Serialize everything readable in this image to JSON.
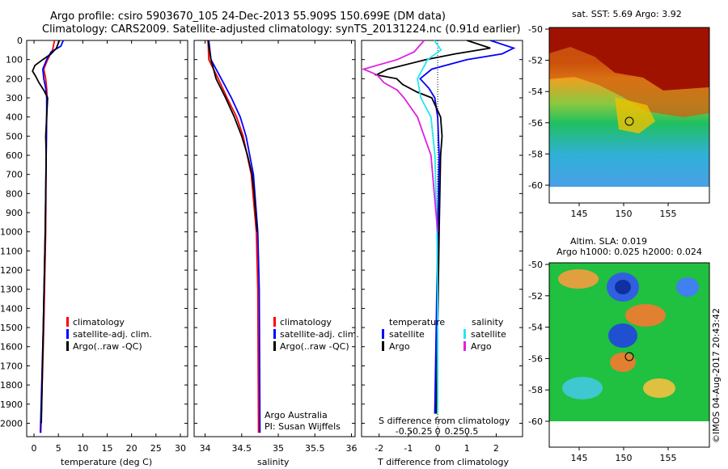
{
  "header": {
    "line1": "Argo profile: csiro 5903670_105 24-Dec-2013 55.909S 150.699E (DM data)",
    "line2": "Climatology: CARS2009. Satellite-adjusted climatology: synTS_20131224.nc (0.91d earlier)"
  },
  "colors": {
    "climatology": "#ff0000",
    "satellite": "#0000ff",
    "argo": "#000000",
    "sal_satellite": "#22e8f0",
    "sal_argo": "#e020e0"
  },
  "depth_ticks": [
    0,
    100,
    200,
    300,
    400,
    500,
    600,
    700,
    800,
    900,
    1000,
    1100,
    1200,
    1300,
    1400,
    1500,
    1600,
    1700,
    1800,
    1900,
    2000
  ],
  "legend": {
    "climatology": "climatology",
    "satellite_adj": "satellite-adj. clim.",
    "argo": "Argo(..raw -QC)"
  },
  "diff_legend": {
    "temperature": "temperature",
    "salinity": "salinity",
    "satellite": "satellite",
    "argo": "Argo"
  },
  "credits": {
    "line1": "Argo Australia",
    "line2": "PI: Susan Wijffels"
  },
  "sst_map": {
    "title": "sat. SST: 5.69  Argo: 3.92",
    "lat_ticks": [
      "-50",
      "-52",
      "-54",
      "-56",
      "-58",
      "-60"
    ],
    "lon_ticks": [
      "145",
      "150",
      "155"
    ]
  },
  "sla_map": {
    "title1": "Altim. SLA: 0.019",
    "title2": "Argo h1000: 0.025 h2000: 0.024",
    "lat_ticks": [
      "-50",
      "-52",
      "-54",
      "-56",
      "-58",
      "-60"
    ],
    "lon_ticks": [
      "145",
      "150",
      "155"
    ]
  },
  "watermark": "©IMOS 04-Aug-2017 20:43:42",
  "chart_data": [
    {
      "type": "line",
      "xlabel": "temperature (deg C)",
      "xticks": [
        0,
        5,
        10,
        15,
        20,
        25,
        30
      ],
      "xlim": [
        -1.5,
        31.5
      ],
      "ylim": [
        2070,
        0
      ],
      "series": [
        {
          "name": "climatology",
          "color": "#ff0000",
          "depth": [
            0,
            50,
            100,
            150,
            200,
            250,
            300,
            400,
            600,
            1000,
            1500,
            2050
          ],
          "values": [
            4.2,
            3.8,
            2.8,
            2.0,
            2.4,
            2.6,
            2.7,
            2.6,
            2.5,
            2.4,
            2.0,
            1.4
          ]
        },
        {
          "name": "satellite-adj. clim.",
          "color": "#0000ff",
          "depth": [
            0,
            30,
            60,
            100,
            150,
            200,
            250,
            300,
            400,
            600,
            1000,
            1500,
            2050
          ],
          "values": [
            6.0,
            5.5,
            3.5,
            2.6,
            1.8,
            2.0,
            2.4,
            2.6,
            2.6,
            2.5,
            2.3,
            1.9,
            1.3
          ]
        },
        {
          "name": "Argo(..raw -QC)",
          "color": "#000000",
          "depth": [
            0,
            40,
            70,
            100,
            130,
            160,
            190,
            220,
            260,
            300,
            400,
            500,
            600,
            1000,
            1500,
            2000
          ],
          "values": [
            5.2,
            4.6,
            3.5,
            1.8,
            0.2,
            -0.3,
            0.4,
            1.0,
            2.0,
            2.8,
            2.6,
            2.4,
            2.5,
            2.3,
            1.9,
            1.5
          ]
        }
      ]
    },
    {
      "type": "line",
      "xlabel": "salinity",
      "xticks": [
        34,
        34.5,
        35,
        35.5,
        36
      ],
      "xlim": [
        33.85,
        36.05
      ],
      "ylim": [
        2070,
        0
      ],
      "series": [
        {
          "name": "climatology",
          "color": "#ff0000",
          "depth": [
            0,
            100,
            200,
            300,
            400,
            500,
            700,
            1000,
            1300,
            2050
          ],
          "values": [
            34.04,
            34.05,
            34.18,
            34.3,
            34.43,
            34.52,
            34.63,
            34.7,
            34.72,
            34.73
          ]
        },
        {
          "name": "satellite-adj. clim.",
          "color": "#0000ff",
          "depth": [
            0,
            100,
            200,
            300,
            400,
            500,
            700,
            1000,
            1300,
            2050
          ],
          "values": [
            34.05,
            34.08,
            34.22,
            34.36,
            34.48,
            34.56,
            34.66,
            34.72,
            34.74,
            34.75
          ]
        },
        {
          "name": "Argo(..raw -QC)",
          "color": "#000000",
          "depth": [
            0,
            100,
            200,
            300,
            400,
            500,
            600,
            700,
            800,
            1000
          ],
          "values": [
            34.04,
            34.08,
            34.15,
            34.28,
            34.4,
            34.5,
            34.58,
            34.64,
            34.67,
            34.71
          ]
        }
      ]
    },
    {
      "type": "line",
      "xlabel": "T difference from climatology",
      "xlabel2": "S difference from climatology",
      "xticks_T": [
        -2,
        -1,
        0,
        1,
        2
      ],
      "xticks_S": [
        -0.5,
        -0.25,
        0,
        0.25,
        0.5
      ],
      "xlim_T": [
        -2.6,
        2.9
      ],
      "ylim": [
        2070,
        0
      ],
      "series": [
        {
          "name": "T satellite",
          "color": "#0000ff",
          "depth": [
            0,
            40,
            70,
            100,
            150,
            200,
            250,
            300,
            400,
            600,
            1000,
            1500,
            1950
          ],
          "values": [
            1.8,
            2.6,
            2.2,
            1.0,
            -0.2,
            -0.6,
            -0.3,
            -0.1,
            0.0,
            0.05,
            0.0,
            -0.05,
            -0.1
          ]
        },
        {
          "name": "T Argo",
          "color": "#000000",
          "depth": [
            0,
            40,
            70,
            100,
            150,
            180,
            200,
            230,
            270,
            300,
            400,
            500,
            600,
            1000,
            1500,
            1950
          ],
          "values": [
            1.0,
            1.8,
            0.6,
            -0.4,
            -1.7,
            -2.1,
            -1.4,
            -1.2,
            -0.7,
            -0.2,
            0.1,
            0.15,
            0.1,
            0.05,
            0.0,
            -0.05
          ]
        },
        {
          "name": "S satellite",
          "color": "#22e8f0",
          "depth": [
            0,
            50,
            100,
            200,
            300,
            400,
            600,
            1000,
            1500,
            1950
          ],
          "values": [
            -0.05,
            0.05,
            -0.15,
            -0.3,
            -0.25,
            -0.1,
            -0.04,
            -0.01,
            0.0,
            0.0
          ]
        },
        {
          "name": "S Argo",
          "color": "#e020e0",
          "depth": [
            0,
            60,
            100,
            150,
            180,
            220,
            260,
            300,
            400,
            500,
            600,
            800,
            1000
          ],
          "values": [
            -0.2,
            -0.35,
            -0.6,
            -1.1,
            -0.9,
            -0.8,
            -0.6,
            -0.5,
            -0.3,
            -0.2,
            -0.1,
            -0.05,
            0.0
          ]
        }
      ]
    }
  ]
}
